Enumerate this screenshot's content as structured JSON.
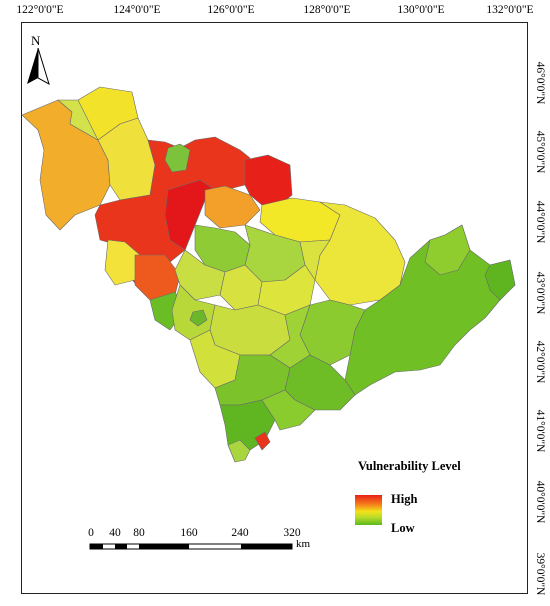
{
  "map": {
    "longitude_ticks": [
      "122°0'0\"E",
      "124°0'0\"E",
      "126°0'0\"E",
      "128°0'0\"E",
      "130°0'0\"E",
      "132°0'0\"E"
    ],
    "latitude_ticks": [
      "46°0'0\"N",
      "45°0'0\"N",
      "44°0'0\"N",
      "43°0'0\"N",
      "42°0'0\"N",
      "41°0'0\"N",
      "40°0'0\"N",
      "39°0'0\"N"
    ],
    "north_arrow": {
      "letter": "N",
      "icon": "north-arrow-icon"
    },
    "legend": {
      "title": "Vulnerability Level",
      "high_label": "High",
      "low_label": "Low",
      "colors": [
        "#e8201a",
        "#f47a1a",
        "#f3e21a",
        "#b7dc2a",
        "#5bb91c"
      ]
    },
    "scale_bar": {
      "ticks": [
        "0",
        "40",
        "80",
        "160",
        "240",
        "320"
      ],
      "unit": "km"
    }
  }
}
